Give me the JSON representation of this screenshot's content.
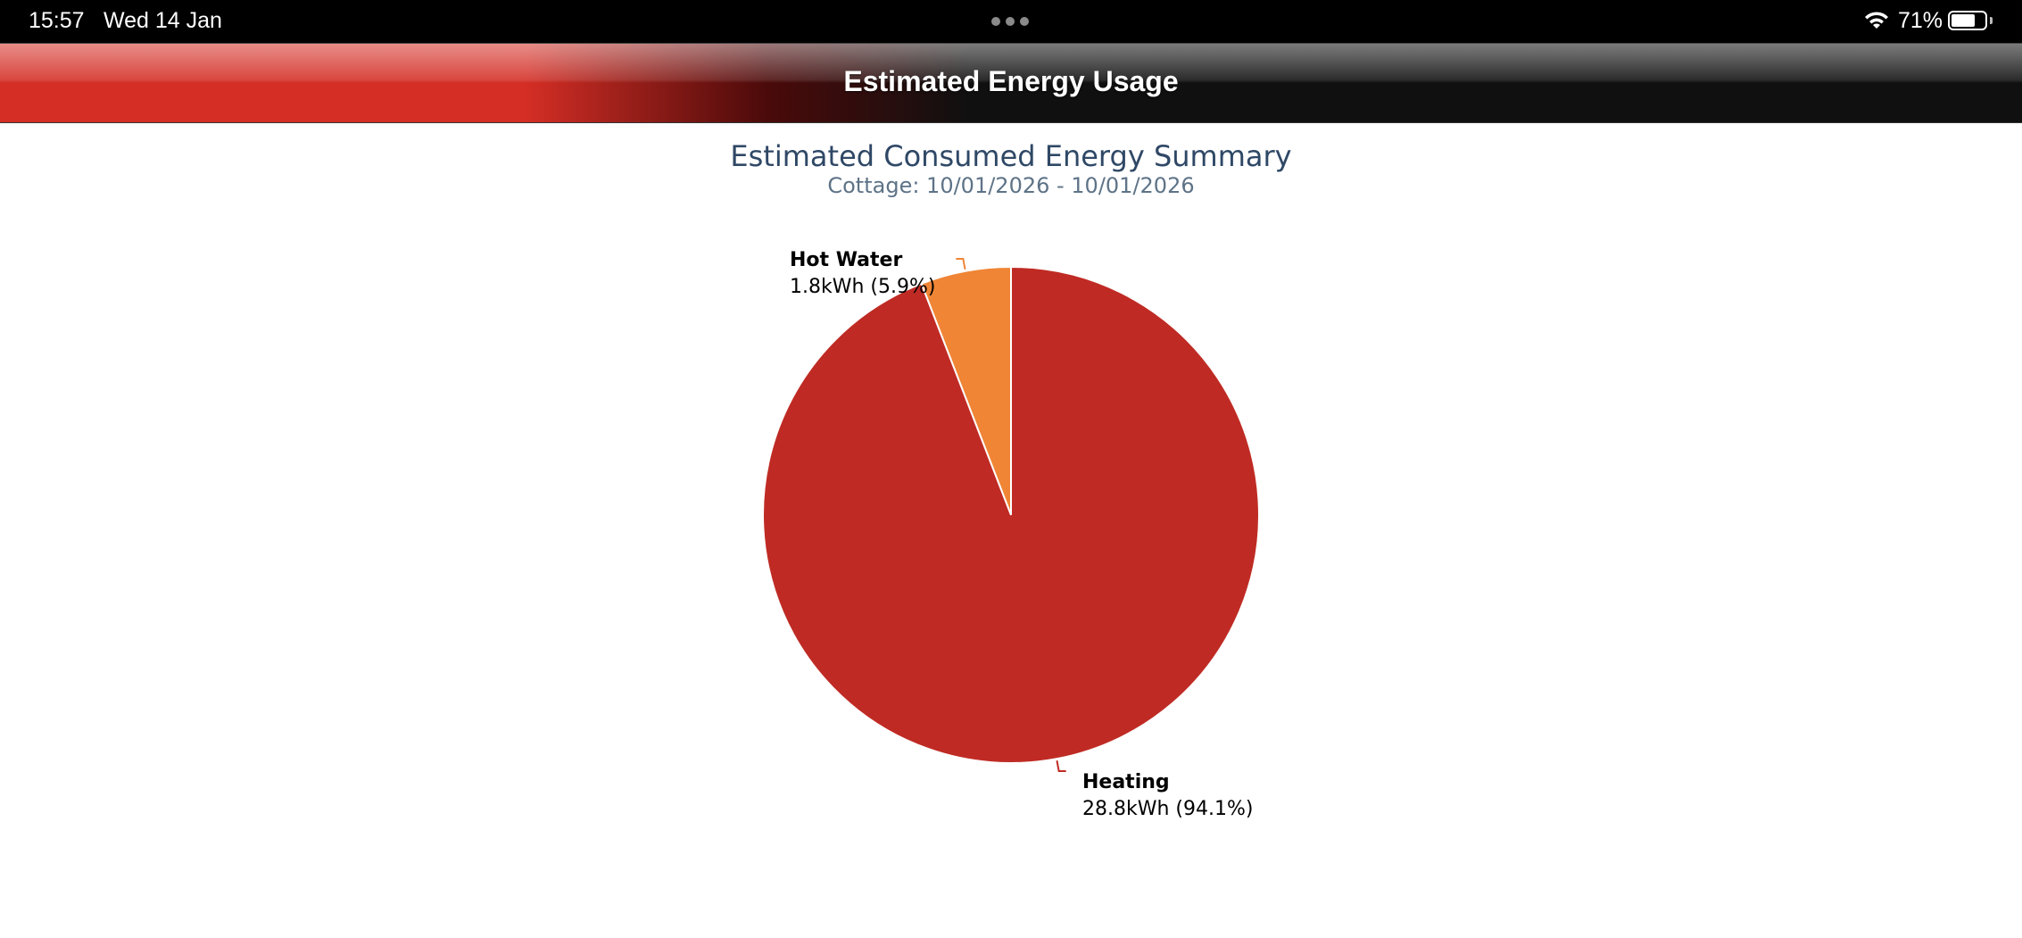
{
  "status_bar": {
    "time": "15:57",
    "date": "Wed 14 Jan",
    "battery": "71%",
    "battery_level": 0.71
  },
  "header": {
    "title": "Estimated Energy Usage"
  },
  "chart_data": {
    "type": "pie",
    "title": "Estimated Consumed Energy Summary",
    "subtitle": "Cottage: 10/01/2026 - 10/01/2026",
    "unit": "kWh",
    "slices": [
      {
        "label": "Hot Water",
        "value": 1.8,
        "percent": 5.9,
        "value_label": "1.8kWh (5.9%)",
        "color": "#ef8535"
      },
      {
        "label": "Heating",
        "value": 28.8,
        "percent": 94.1,
        "value_label": "28.8kWh (94.1%)",
        "color": "#bf2b24"
      }
    ]
  }
}
